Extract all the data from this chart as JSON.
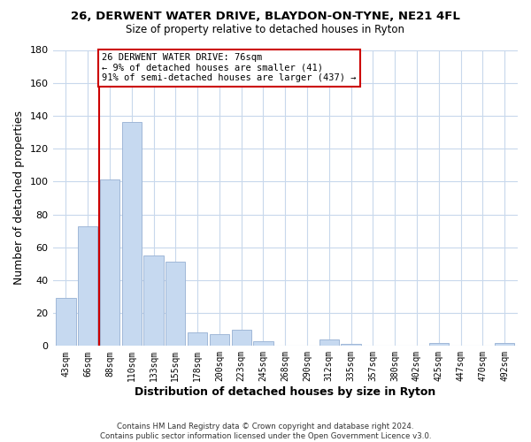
{
  "title": "26, DERWENT WATER DRIVE, BLAYDON-ON-TYNE, NE21 4FL",
  "subtitle": "Size of property relative to detached houses in Ryton",
  "xlabel": "Distribution of detached houses by size in Ryton",
  "ylabel": "Number of detached properties",
  "bin_labels": [
    "43sqm",
    "66sqm",
    "88sqm",
    "110sqm",
    "133sqm",
    "155sqm",
    "178sqm",
    "200sqm",
    "223sqm",
    "245sqm",
    "268sqm",
    "290sqm",
    "312sqm",
    "335sqm",
    "357sqm",
    "380sqm",
    "402sqm",
    "425sqm",
    "447sqm",
    "470sqm",
    "492sqm"
  ],
  "bar_heights": [
    29,
    73,
    101,
    136,
    55,
    51,
    8,
    7,
    10,
    3,
    0,
    0,
    4,
    1,
    0,
    0,
    0,
    2,
    0,
    0,
    2
  ],
  "bar_color": "#c6d9f0",
  "bar_edge_color": "#a0b8d8",
  "ylim": [
    0,
    180
  ],
  "yticks": [
    0,
    20,
    40,
    60,
    80,
    100,
    120,
    140,
    160,
    180
  ],
  "property_line_color": "#cc0000",
  "annotation_line1": "26 DERWENT WATER DRIVE: 76sqm",
  "annotation_line2": "← 9% of detached houses are smaller (41)",
  "annotation_line3": "91% of semi-detached houses are larger (437) →",
  "annotation_box_color": "#ffffff",
  "annotation_box_edge": "#cc0000",
  "footer": "Contains HM Land Registry data © Crown copyright and database right 2024.\nContains public sector information licensed under the Open Government Licence v3.0.",
  "background_color": "#ffffff",
  "grid_color": "#c8d8ec"
}
